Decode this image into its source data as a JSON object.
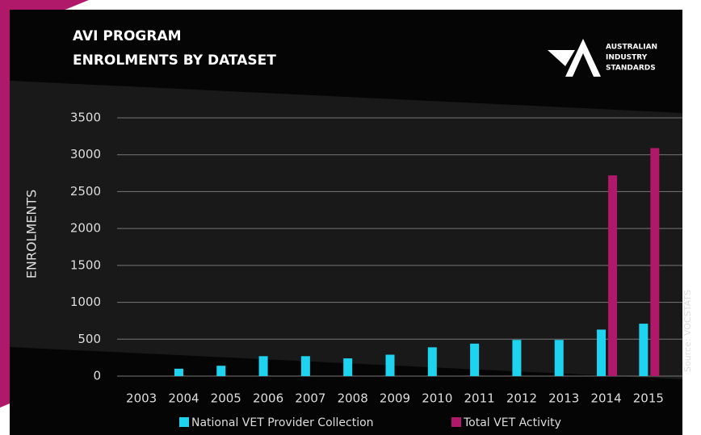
{
  "chart_data": {
    "type": "bar",
    "title": [
      "AVI PROGRAM",
      "ENROLMENTS BY DATASET"
    ],
    "logo": [
      "AUSTRALIAN",
      "INDUSTRY",
      "STANDARDS"
    ],
    "y_label": "ENROLMENTS",
    "source": "Source: VOCSTATS",
    "categories": [
      "2003",
      "2004",
      "2005",
      "2006",
      "2007",
      "2008",
      "2009",
      "2010",
      "2011",
      "2012",
      "2013",
      "2014",
      "2015"
    ],
    "series": [
      {
        "name": "National VET Provider Collection",
        "color": "#1ed3f0",
        "values": [
          0,
          100,
          140,
          270,
          270,
          240,
          290,
          390,
          440,
          490,
          490,
          630,
          710
        ]
      },
      {
        "name": "Total VET Activity",
        "color": "#b0186a",
        "values": [
          null,
          null,
          null,
          null,
          null,
          null,
          null,
          null,
          null,
          null,
          null,
          2720,
          3090
        ]
      }
    ],
    "ylim": [
      0,
      3500
    ],
    "yticks": [
      0,
      500,
      1000,
      1500,
      2000,
      2500,
      3000,
      3500
    ],
    "grid": true
  }
}
